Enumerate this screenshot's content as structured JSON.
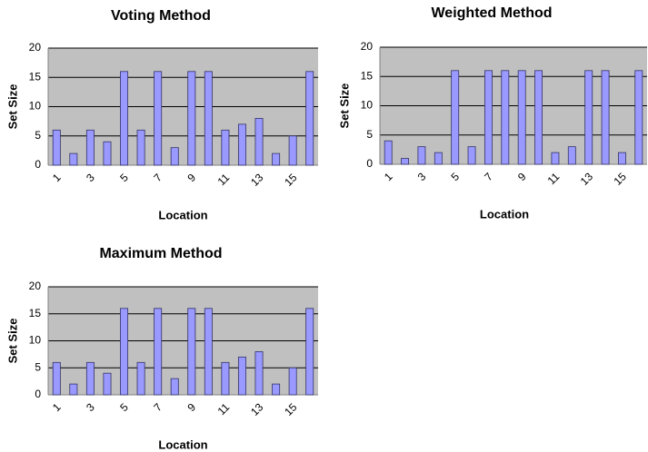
{
  "chart_data": [
    {
      "type": "bar",
      "title": "Voting Method",
      "x_label": "Location",
      "y_label": "Set Size",
      "categories": [
        "1",
        null,
        "3",
        null,
        "5",
        null,
        "7",
        null,
        "9",
        null,
        "11",
        null,
        "13",
        null,
        "15",
        null
      ],
      "values": [
        6,
        2,
        6,
        4,
        16,
        6,
        16,
        3,
        16,
        16,
        6,
        7,
        8,
        2,
        5,
        16
      ],
      "color": "#9999ff",
      "ylim": [
        0,
        20
      ],
      "yticks": [
        0,
        5,
        10,
        15,
        20
      ],
      "grid": true
    },
    {
      "type": "bar",
      "title": "Weighted Method",
      "x_label": "Location",
      "y_label": "Set Size",
      "categories": [
        "1",
        null,
        "3",
        null,
        "5",
        null,
        "7",
        null,
        "9",
        null,
        "11",
        null,
        "13",
        null,
        "15",
        null
      ],
      "values": [
        4,
        1,
        3,
        2,
        16,
        3,
        16,
        16,
        16,
        16,
        2,
        3,
        16,
        16,
        2,
        16
      ],
      "color": "#9999ff",
      "ylim": [
        0,
        20
      ],
      "yticks": [
        0,
        5,
        10,
        15,
        20
      ],
      "grid": true
    },
    {
      "type": "bar",
      "title": "Maximum Method",
      "x_label": "Location",
      "y_label": "Set Size",
      "categories": [
        "1",
        null,
        "3",
        null,
        "5",
        null,
        "7",
        null,
        "9",
        null,
        "11",
        null,
        "13",
        null,
        "15",
        null
      ],
      "values": [
        6,
        2,
        6,
        4,
        16,
        6,
        16,
        3,
        16,
        16,
        6,
        7,
        8,
        2,
        5,
        16
      ],
      "color": "#9999ff",
      "ylim": [
        0,
        20
      ],
      "yticks": [
        0,
        5,
        10,
        15,
        20
      ],
      "grid": true
    }
  ]
}
